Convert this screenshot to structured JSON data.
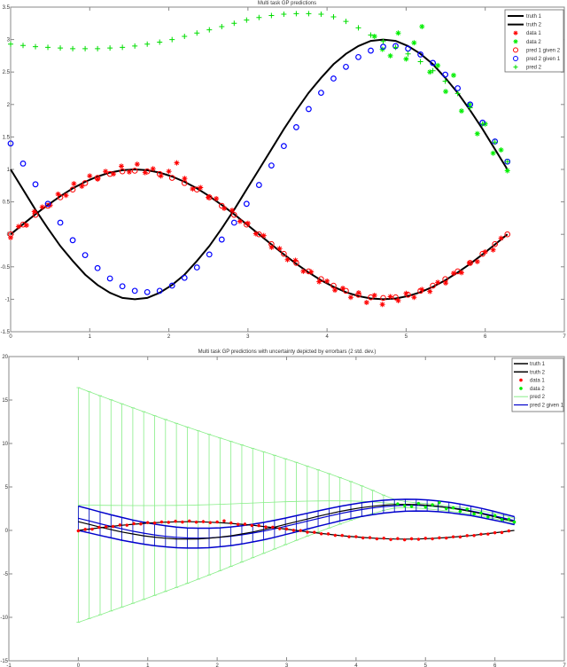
{
  "chart_data": [
    {
      "type": "line",
      "title": "Multi task GP predictions",
      "xlim": [
        0,
        7
      ],
      "ylim": [
        -1.5,
        3.5
      ],
      "xticks": [
        "0",
        "1",
        "2",
        "3",
        "4",
        "5",
        "6",
        "7"
      ],
      "yticks": [
        "-1.5",
        "-1",
        "-0.5",
        "0",
        "0.5",
        "1",
        "1.5",
        "2",
        "2.5",
        "3",
        "3.5"
      ],
      "grid": false,
      "legend_position": "top-right",
      "legend": [
        "truth 1",
        "truth 2",
        "data 1",
        "data 2",
        "pred 1 given 2",
        "pred 2 given 1",
        "pred 2"
      ],
      "colors": {
        "truth": "#000000",
        "data1": "#ff0000",
        "data2": "#00ee00",
        "pred1": "#ff0000",
        "pred2given1": "#0000ff",
        "pred2": "#00dd00"
      },
      "x": [
        0,
        0.157,
        0.314,
        0.471,
        0.628,
        0.785,
        0.942,
        1.099,
        1.256,
        1.413,
        1.57,
        1.727,
        1.884,
        2.041,
        2.198,
        2.355,
        2.512,
        2.669,
        2.826,
        2.983,
        3.14,
        3.297,
        3.454,
        3.611,
        3.768,
        3.925,
        4.082,
        4.239,
        4.396,
        4.553,
        4.71,
        4.867,
        5.024,
        5.181,
        5.338,
        5.495,
        5.652,
        5.809,
        5.966,
        6.123,
        6.28
      ],
      "truth1": [
        0,
        0.156,
        0.309,
        0.454,
        0.588,
        0.707,
        0.809,
        0.891,
        0.951,
        0.988,
        1,
        0.988,
        0.951,
        0.891,
        0.809,
        0.707,
        0.588,
        0.454,
        0.309,
        0.156,
        0,
        -0.156,
        -0.309,
        -0.454,
        -0.588,
        -0.707,
        -0.809,
        -0.891,
        -0.951,
        -0.988,
        -1,
        -0.988,
        -0.951,
        -0.891,
        -0.809,
        -0.707,
        -0.588,
        -0.454,
        -0.309,
        -0.156,
        0
      ],
      "truth2": [
        1,
        0.69,
        0.38,
        0.09,
        -0.18,
        -0.41,
        -0.62,
        -0.78,
        -0.9,
        -0.98,
        -1,
        -0.98,
        -0.9,
        -0.78,
        -0.62,
        -0.41,
        -0.18,
        0.09,
        0.38,
        0.69,
        1,
        1.31,
        1.62,
        1.91,
        2.18,
        2.41,
        2.62,
        2.78,
        2.9,
        2.98,
        3,
        2.98,
        2.9,
        2.78,
        2.62,
        2.41,
        2.18,
        1.91,
        1.62,
        1.31,
        1
      ],
      "pred1_given2": [
        0,
        0.15,
        0.3,
        0.44,
        0.57,
        0.69,
        0.79,
        0.87,
        0.93,
        0.97,
        0.98,
        0.97,
        0.93,
        0.87,
        0.79,
        0.69,
        0.57,
        0.44,
        0.3,
        0.15,
        0,
        -0.15,
        -0.3,
        -0.44,
        -0.57,
        -0.69,
        -0.79,
        -0.87,
        -0.93,
        -0.97,
        -0.98,
        -0.97,
        -0.93,
        -0.87,
        -0.79,
        -0.69,
        -0.57,
        -0.44,
        -0.3,
        -0.15,
        0
      ],
      "pred2_given1": [
        1.4,
        1.09,
        0.77,
        0.47,
        0.18,
        -0.09,
        -0.32,
        -0.52,
        -0.68,
        -0.8,
        -0.87,
        -0.89,
        -0.87,
        -0.79,
        -0.67,
        -0.51,
        -0.31,
        -0.08,
        0.18,
        0.47,
        0.76,
        1.06,
        1.36,
        1.65,
        1.93,
        2.18,
        2.4,
        2.58,
        2.73,
        2.83,
        2.89,
        2.9,
        2.86,
        2.77,
        2.64,
        2.46,
        2.25,
        2,
        1.72,
        1.43,
        1.12
      ],
      "pred2": [
        2.93,
        2.91,
        2.89,
        2.88,
        2.87,
        2.86,
        2.86,
        2.86,
        2.87,
        2.88,
        2.9,
        2.93,
        2.96,
        3,
        3.05,
        3.1,
        3.15,
        3.2,
        3.25,
        3.3,
        3.34,
        3.37,
        3.39,
        3.4,
        3.4,
        3.39,
        3.35,
        3.28,
        3.18,
        3.07,
        2.97,
        2.88,
        2.78,
        2.66,
        2.52,
        2.36,
        2.17,
        1.95,
        1.7,
        1.42,
        1.12
      ],
      "data1": {
        "x": [
          0,
          0.1,
          0.2,
          0.3,
          0.4,
          0.5,
          0.6,
          0.7,
          0.8,
          0.9,
          1,
          1.1,
          1.2,
          1.3,
          1.4,
          1.5,
          1.6,
          1.7,
          1.8,
          1.9,
          2,
          2.1,
          2.2,
          2.3,
          2.4,
          2.5,
          2.6,
          2.7,
          2.8,
          2.9,
          3,
          3.1,
          3.2,
          3.3,
          3.4,
          3.5,
          3.6,
          3.7,
          3.8,
          3.9,
          4,
          4.1,
          4.2,
          4.3,
          4.4,
          4.5,
          4.6,
          4.7,
          4.8,
          4.9,
          5,
          5.1,
          5.2,
          5.3,
          5.4,
          5.5,
          5.6,
          5.7,
          5.8,
          5.9,
          6,
          6.1,
          6.2
        ],
        "y": [
          -0.05,
          0.12,
          0.14,
          0.35,
          0.42,
          0.45,
          0.62,
          0.6,
          0.78,
          0.74,
          0.9,
          0.85,
          0.97,
          0.93,
          1.05,
          0.96,
          1.08,
          0.95,
          1.01,
          0.9,
          0.97,
          1.1,
          0.86,
          0.7,
          0.72,
          0.57,
          0.55,
          0.4,
          0.37,
          0.2,
          0.17,
          0.01,
          -0.02,
          -0.2,
          -0.22,
          -0.39,
          -0.4,
          -0.57,
          -0.58,
          -0.73,
          -0.72,
          -0.86,
          -0.83,
          -0.97,
          -0.9,
          -1.05,
          -0.94,
          -1.08,
          -0.96,
          -1.02,
          -0.91,
          -0.97,
          -0.85,
          -0.88,
          -0.74,
          -0.75,
          -0.6,
          -0.59,
          -0.44,
          -0.42,
          -0.27,
          -0.24,
          -0.06
        ]
      },
      "data2": {
        "x": [
          4.6,
          4.7,
          4.8,
          4.9,
          5,
          5.1,
          5.2,
          5.3,
          5.4,
          5.5,
          5.6,
          5.7,
          5.8,
          5.9,
          6,
          6.1,
          6.2,
          6.28
        ],
        "y": [
          3.05,
          2.85,
          2.75,
          3.1,
          2.7,
          2.95,
          3.2,
          2.5,
          2.6,
          2.2,
          2.45,
          1.9,
          2,
          1.55,
          1.7,
          1.25,
          1.3,
          0.98
        ]
      }
    },
    {
      "type": "line",
      "title": "Multi task GP predictions with uncertainty depicted by errorbars (2 std. dev.)",
      "xlim": [
        -1,
        7
      ],
      "ylim": [
        -15,
        20
      ],
      "xticks": [
        "-1",
        "0",
        "1",
        "2",
        "3",
        "4",
        "5",
        "6",
        "7"
      ],
      "yticks": [
        "-15",
        "-10",
        "-5",
        "0",
        "5",
        "10",
        "15",
        "20"
      ],
      "grid": false,
      "legend_position": "top-right",
      "legend": [
        "truth 1",
        "truth 2",
        "data 1",
        "data 2",
        "pred 2",
        "pred 2 given 1"
      ],
      "colors": {
        "truth": "#000000",
        "data1": "#ff0000",
        "data2": "#00ee00",
        "pred2": "#88ee88",
        "pred2given1": "#0000cc"
      },
      "pred2_err": [
        13.5,
        13.05,
        12.6,
        12.15,
        11.7,
        11.25,
        10.8,
        10.34,
        9.89,
        9.44,
        8.99,
        8.54,
        8.09,
        7.64,
        7.19,
        6.74,
        6.29,
        5.84,
        5.39,
        4.94,
        4.49,
        4.03,
        3.58,
        3.13,
        2.68,
        2.23,
        1.78,
        1.33,
        0.88,
        0.5,
        0.35,
        0.3,
        0.3,
        0.3,
        0.3,
        0.3,
        0.3,
        0.3,
        0.3,
        0.3,
        0.3
      ],
      "pred2_given1_err": [
        1.4,
        1.38,
        1.35,
        1.33,
        1.31,
        1.28,
        1.26,
        1.24,
        1.21,
        1.19,
        1.16,
        1.14,
        1.12,
        1.09,
        1.07,
        1.05,
        1.02,
        1,
        0.98,
        0.95,
        0.93,
        0.91,
        0.88,
        0.86,
        0.84,
        0.81,
        0.79,
        0.76,
        0.74,
        0.72,
        0.69,
        0.67,
        0.65,
        0.62,
        0.6,
        0.58,
        0.55,
        0.53,
        0.51,
        0.48,
        0.46
      ]
    }
  ]
}
